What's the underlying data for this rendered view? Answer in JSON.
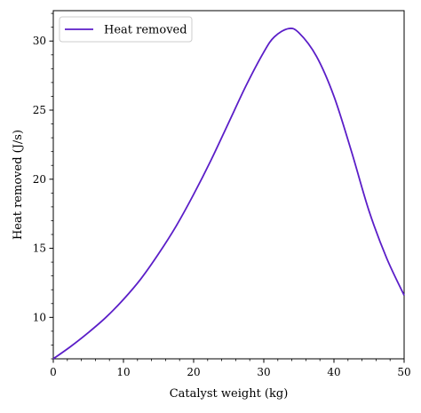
{
  "chart_data": {
    "type": "line",
    "title": "",
    "xlabel": "Catalyst weight (kg)",
    "ylabel": "Heat removed (J/s)",
    "xlim": [
      0,
      50
    ],
    "ylim": [
      7,
      32.2
    ],
    "xticks": [
      0,
      10,
      20,
      30,
      40,
      50
    ],
    "yticks": [
      10,
      15,
      20,
      25,
      30
    ],
    "grid": false,
    "legend_position": "top-left",
    "series": [
      {
        "name": "Heat removed",
        "color": "#5b1ec8",
        "x": [
          0,
          2.5,
          5,
          7.5,
          10,
          12.5,
          15,
          17.5,
          20,
          22.5,
          25,
          27.5,
          30,
          31.5,
          33.5,
          35,
          37.5,
          40,
          42.5,
          45,
          47.5,
          50
        ],
        "y": [
          7.0,
          7.9,
          8.9,
          10.0,
          11.3,
          12.8,
          14.6,
          16.6,
          18.9,
          21.4,
          24.1,
          26.8,
          29.2,
          30.3,
          30.9,
          30.6,
          28.9,
          26.0,
          22.0,
          17.7,
          14.3,
          11.6
        ]
      }
    ]
  }
}
